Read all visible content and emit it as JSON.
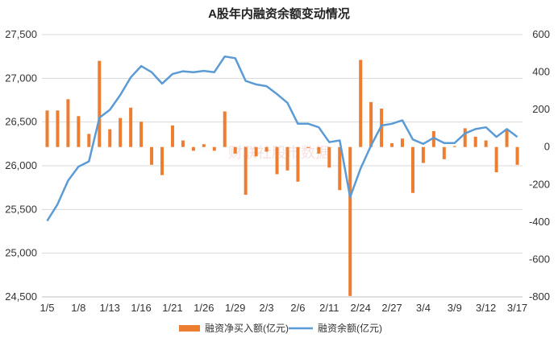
{
  "chart_data": {
    "type": "bar+line",
    "title": "A股年内融资余额变动情况",
    "watermark": "财联社股市数据",
    "x_tick_labels": [
      "1/5",
      "1/8",
      "1/13",
      "1/16",
      "1/21",
      "1/26",
      "1/29",
      "2/3",
      "2/6",
      "2/11",
      "2/24",
      "2/27",
      "3/4",
      "3/9",
      "3/12",
      "3/17"
    ],
    "left_axis": {
      "ylim": [
        24500,
        27500
      ],
      "ticks": [
        "24,500",
        "25,000",
        "25,500",
        "26,000",
        "26,500",
        "27,000",
        "27,500"
      ]
    },
    "right_axis": {
      "ylim": [
        -800,
        600
      ],
      "ticks": [
        "-800",
        "-600",
        "-400",
        "-200",
        "0",
        "200",
        "400",
        "600"
      ]
    },
    "series": [
      {
        "name": "融资净买入额(亿元)",
        "axis": "right",
        "kind": "bar",
        "color": "#ED7D31",
        "values": [
          195,
          195,
          255,
          165,
          70,
          460,
          95,
          155,
          210,
          135,
          -95,
          -150,
          115,
          35,
          -20,
          15,
          -20,
          190,
          -35,
          -255,
          -50,
          -25,
          -145,
          -125,
          -185,
          -5,
          -35,
          -110,
          -230,
          -795,
          465,
          240,
          205,
          20,
          45,
          -245,
          -85,
          85,
          -65,
          5,
          100,
          55,
          35,
          -135,
          95,
          -95
        ]
      },
      {
        "name": "融资余额(亿元)",
        "axis": "left",
        "kind": "line",
        "color": "#5B9BD5",
        "values": [
          25370,
          25560,
          25830,
          25990,
          26050,
          26550,
          26640,
          26810,
          27010,
          27140,
          27070,
          26940,
          27050,
          27080,
          27070,
          27085,
          27070,
          27250,
          27230,
          26970,
          26930,
          26910,
          26820,
          26720,
          26480,
          26480,
          26440,
          26270,
          26290,
          25640,
          25970,
          26230,
          26460,
          26480,
          26520,
          26300,
          26250,
          26320,
          26260,
          26260,
          26370,
          26420,
          26440,
          26330,
          26420,
          26330
        ]
      }
    ]
  }
}
